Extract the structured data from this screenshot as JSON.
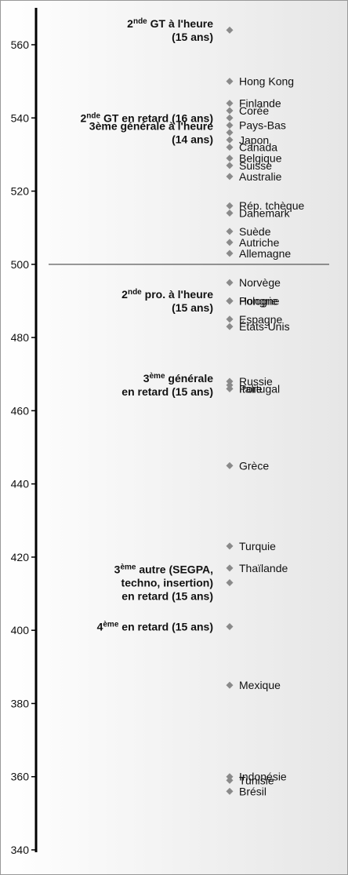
{
  "chart_data": {
    "type": "scatter",
    "ylim": [
      340,
      565
    ],
    "yticks": [
      340,
      360,
      380,
      400,
      420,
      440,
      460,
      480,
      500,
      520,
      540,
      560
    ],
    "reference_line": 500,
    "color": "#8a8a8a",
    "countries": [
      {
        "name": "Hong Kong",
        "value": 550
      },
      {
        "name": "Finlande",
        "value": 544
      },
      {
        "name": "Corée",
        "value": 542
      },
      {
        "name": "Pays-Bas",
        "value": 538
      },
      {
        "name": "Japon",
        "value": 534
      },
      {
        "name": "Canada",
        "value": 532
      },
      {
        "name": "Belgique",
        "value": 529
      },
      {
        "name": "Suisse",
        "value": 527
      },
      {
        "name": "Australie",
        "value": 524
      },
      {
        "name": "Rép. tchèque",
        "value": 516
      },
      {
        "name": "Danemark",
        "value": 514
      },
      {
        "name": "Suède",
        "value": 509
      },
      {
        "name": "Autriche",
        "value": 506
      },
      {
        "name": "Allemagne",
        "value": 503
      },
      {
        "name": "Norvège",
        "value": 495
      },
      {
        "name": "Hongrie",
        "value": 490
      },
      {
        "name": "Pologne",
        "value": 490
      },
      {
        "name": "Espagne",
        "value": 485
      },
      {
        "name": "États-Unis",
        "value": 483
      },
      {
        "name": "Russie",
        "value": 468
      },
      {
        "name": "Portugal",
        "value": 466
      },
      {
        "name": "Italie",
        "value": 466
      },
      {
        "name": "Grèce",
        "value": 445
      },
      {
        "name": "Turquie",
        "value": 423
      },
      {
        "name": "Thaïlande",
        "value": 417
      },
      {
        "name": "Mexique",
        "value": 385
      },
      {
        "name": "Indonésie",
        "value": 360
      },
      {
        "name": "Tunisie",
        "value": 359
      },
      {
        "name": "Brésil",
        "value": 356
      }
    ],
    "french_groups": [
      {
        "value": 564,
        "lines": [
          [
            {
              "text": "2"
            },
            {
              "sup": "nde"
            },
            {
              "text": " GT à l'heure"
            }
          ],
          [
            {
              "text": "(15 ans)"
            }
          ]
        ]
      },
      {
        "value": 540,
        "lines": [
          [
            {
              "text": "2"
            },
            {
              "sup": "nde"
            },
            {
              "text": " GT en retard (16 ans)"
            }
          ]
        ]
      },
      {
        "value": 536,
        "lines": [
          [
            {
              "text": "3ème générale à l'heure"
            }
          ],
          [
            {
              "text": "(14 ans)"
            }
          ]
        ]
      },
      {
        "value": 490,
        "lines": [
          [
            {
              "text": "2"
            },
            {
              "sup": "nde"
            },
            {
              "text": " pro. à l'heure"
            }
          ],
          [
            {
              "text": "(15 ans)"
            }
          ]
        ]
      },
      {
        "value": 467,
        "lines": [
          [
            {
              "text": "3"
            },
            {
              "sup": "ème"
            },
            {
              "text": " générale"
            }
          ],
          [
            {
              "text": "en retard (15 ans)"
            }
          ]
        ]
      },
      {
        "value": 413,
        "lines": [
          [
            {
              "text": "3"
            },
            {
              "sup": "ème"
            },
            {
              "text": " autre (SEGPA,"
            }
          ],
          [
            {
              "text": "techno, insertion)"
            }
          ],
          [
            {
              "text": "en retard (15 ans)"
            }
          ]
        ]
      },
      {
        "value": 401,
        "lines": [
          [
            {
              "text": "4"
            },
            {
              "sup": "ème"
            },
            {
              "text": " en retard (15 ans)"
            }
          ]
        ]
      }
    ]
  }
}
